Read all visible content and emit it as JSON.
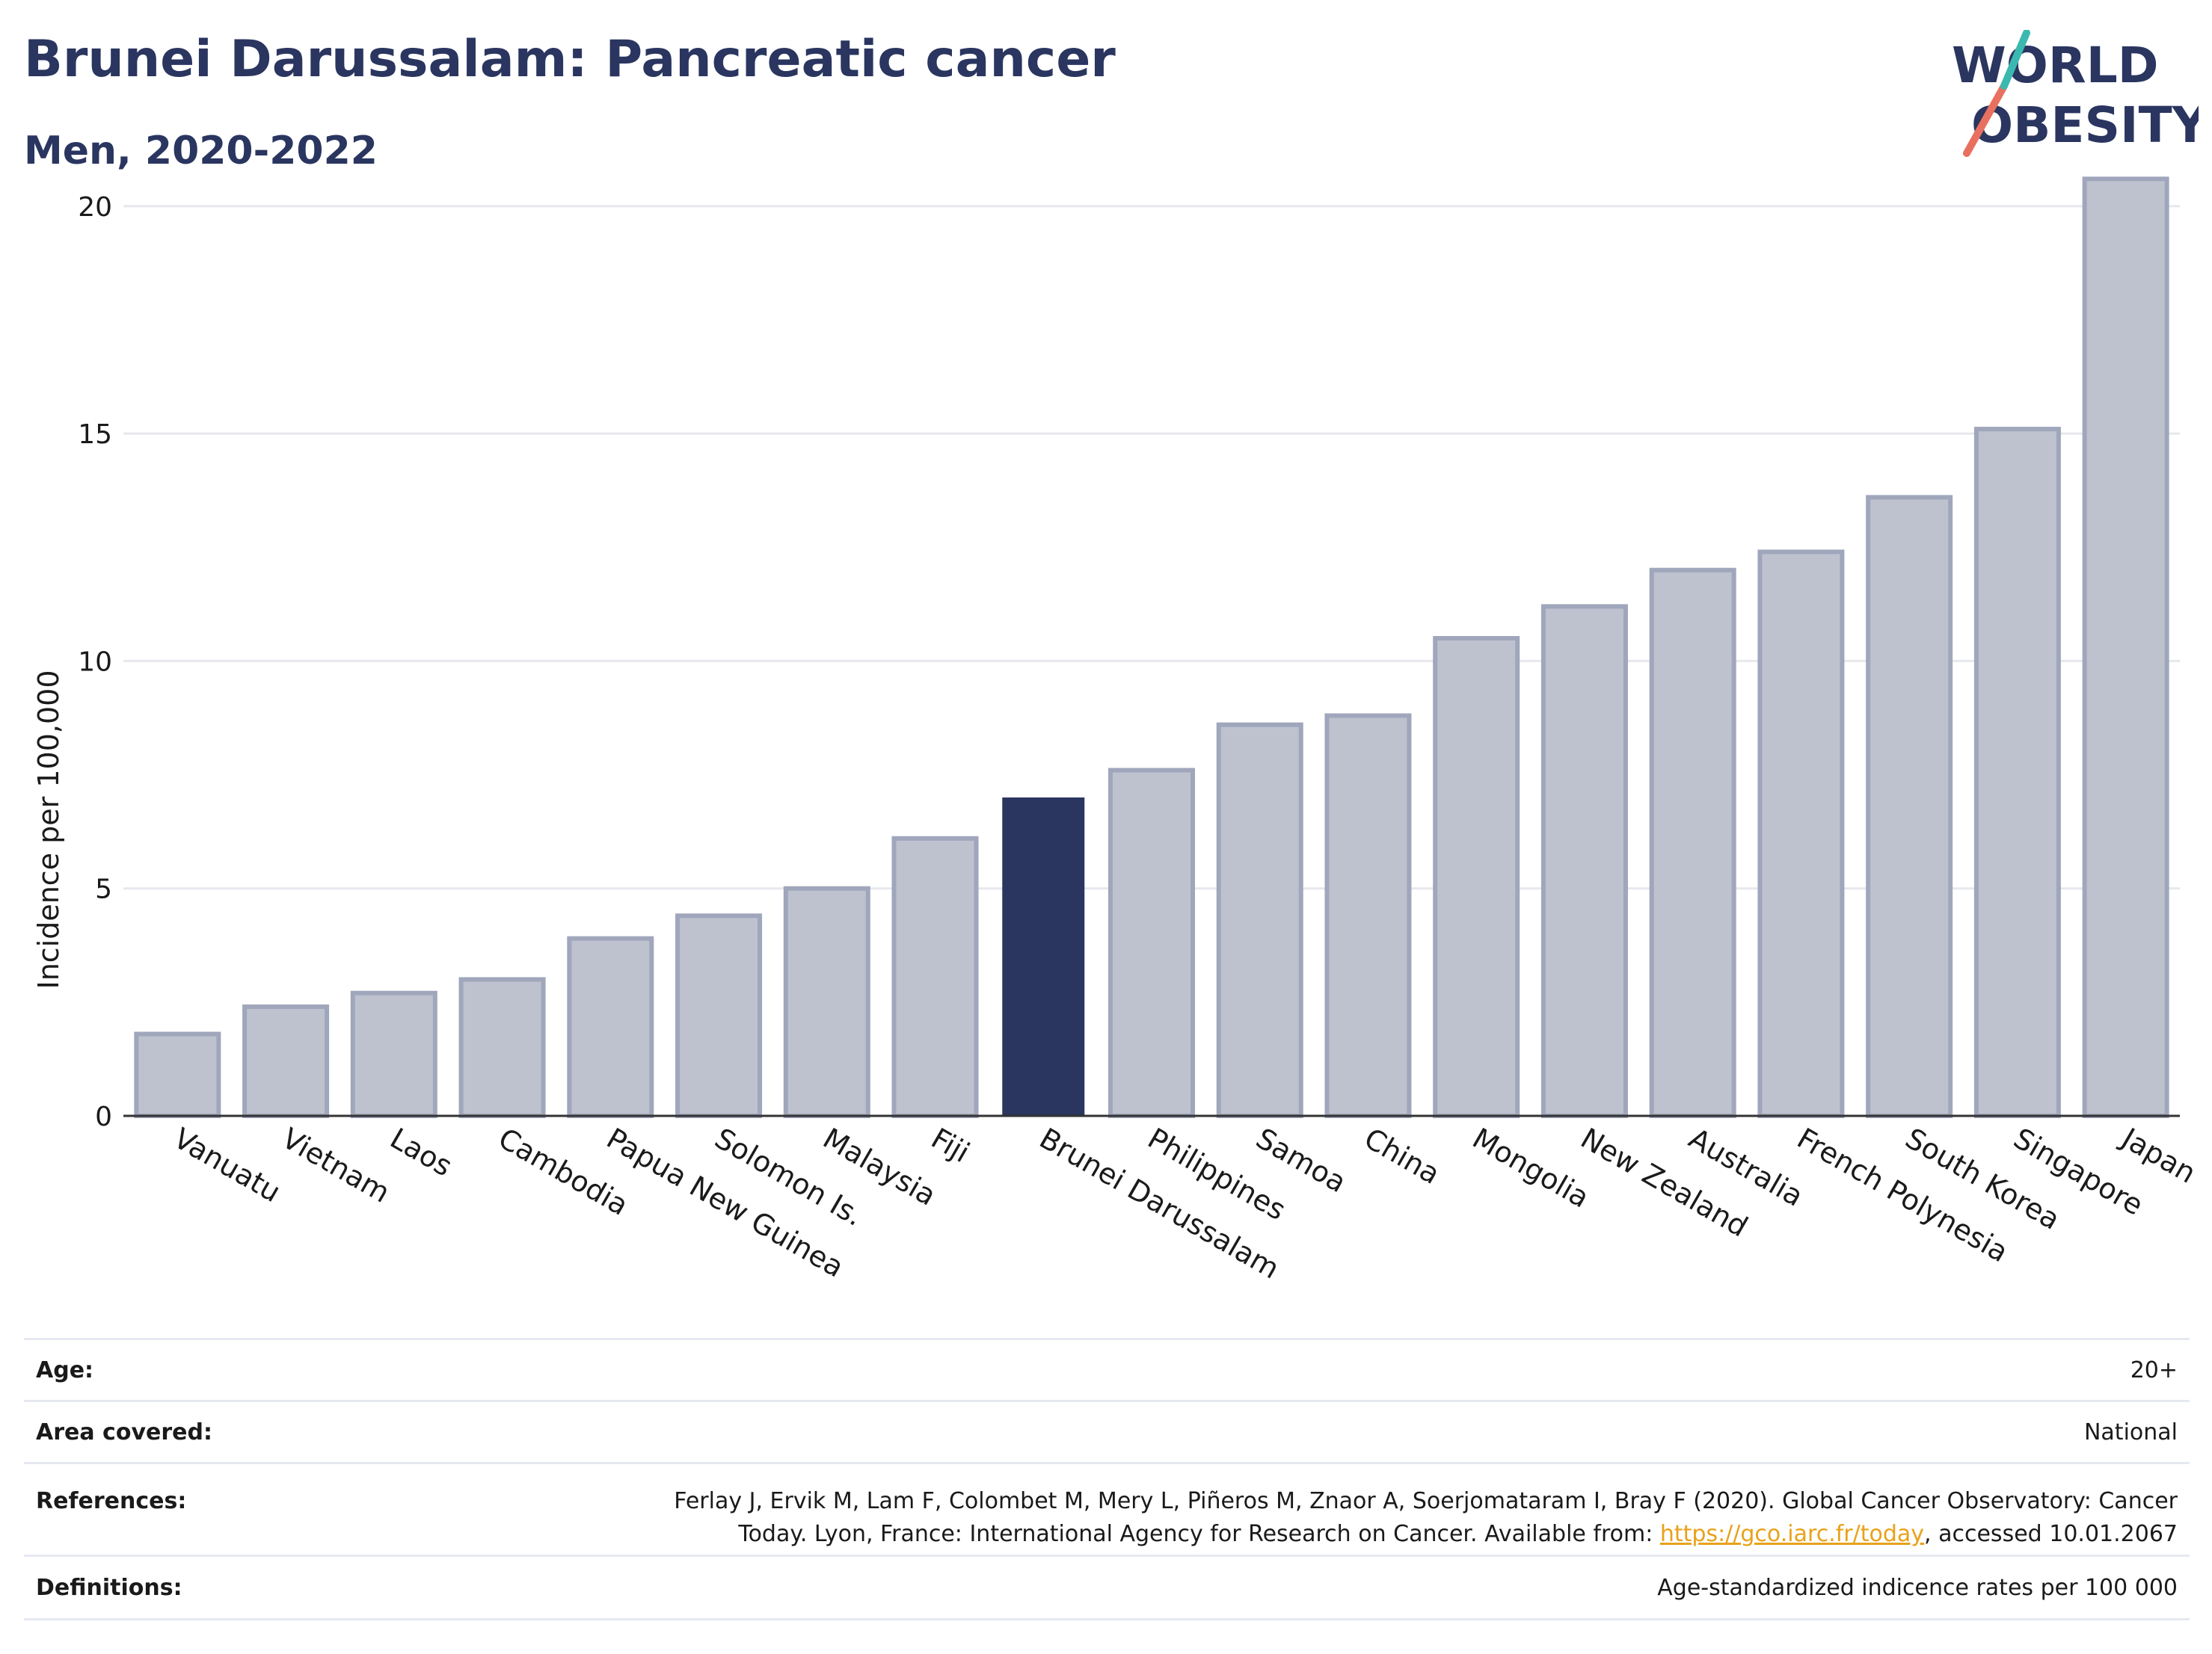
{
  "header": {
    "title": "Brunei Darussalam: Pancreatic cancer",
    "subtitle": "Men, 2020-2022"
  },
  "logo": {
    "line1": "WORLD",
    "line2": "OBESITY"
  },
  "colors": {
    "highlight": "#2a3560",
    "bar": "#bec2cf",
    "bar_edge": "#a0a6bb",
    "grid": "#e6e8ee",
    "accent_teal": "#3bb9b0",
    "accent_coral": "#e8705f"
  },
  "chart_data": {
    "type": "bar",
    "ylabel": "Incidence per 100,000",
    "ylim": [
      0,
      21
    ],
    "yticks": [
      0,
      5,
      10,
      15,
      20
    ],
    "highlight": "Brunei Darussalam",
    "categories": [
      "Vanuatu",
      "Vietnam",
      "Laos",
      "Cambodia",
      "Papua New Guinea",
      "Solomon Is.",
      "Malaysia",
      "Fiji",
      "Brunei Darussalam",
      "Philippines",
      "Samoa",
      "China",
      "Mongolia",
      "New Zealand",
      "Australia",
      "French Polynesia",
      "South Korea",
      "Singapore",
      "Japan"
    ],
    "values": [
      1.8,
      2.4,
      2.7,
      3.0,
      3.9,
      4.4,
      5.0,
      6.1,
      7.0,
      7.6,
      8.6,
      8.8,
      10.5,
      11.2,
      12.0,
      12.4,
      13.6,
      15.1,
      20.6
    ]
  },
  "info": {
    "age_label": "Age:",
    "age_value": "20+",
    "area_label": "Area covered:",
    "area_value": "National",
    "references_label": "References:",
    "references_line1": "Ferlay J, Ervik M, Lam F, Colombet M, Mery L, Piñeros M, Znaor A, Soerjomataram I, Bray F (2020). Global Cancer Observatory: Cancer",
    "references_line2_pre": "Today. Lyon, France: International Agency for Research on Cancer. Available from: ",
    "references_link": "https://gco.iarc.fr/today",
    "references_line2_post": ", accessed 10.01.2067",
    "definitions_label": "Definitions:",
    "definitions_value": "Age-standardized indicence rates per 100 000"
  }
}
